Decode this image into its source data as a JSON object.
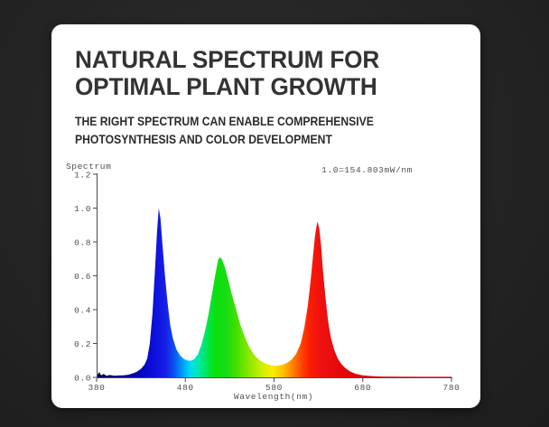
{
  "card": {
    "title_line1": "NATURAL SPECTRUM FOR",
    "title_line2": "OPTIMAL PLANT GROWTH",
    "subtitle_line1": "THE RIGHT SPECTRUM CAN ENABLE COMPREHENSIVE",
    "subtitle_line2": "PHOTOSYNTHESIS AND COLOR DEVELOPMENT"
  },
  "chart_data": {
    "type": "area",
    "title": "",
    "ylabel": "Spectrum",
    "xlabel": "Wavelength(nm)",
    "annotation": "1.0=154.803mW/nm",
    "x_range": [
      380,
      780
    ],
    "y_range": [
      0,
      1.2
    ],
    "grid": false,
    "x_ticks": [
      {
        "label": "380",
        "value": 380
      },
      {
        "label": "480",
        "value": 480
      },
      {
        "label": "580",
        "value": 580
      },
      {
        "label": "680",
        "value": 680
      },
      {
        "label": "780",
        "value": 780
      }
    ],
    "y_ticks": [
      {
        "label": "1.2",
        "value": 1.2
      },
      {
        "label": "1.0",
        "value": 1.0
      },
      {
        "label": "0.8",
        "value": 0.8
      },
      {
        "label": "0.6",
        "value": 0.6
      },
      {
        "label": "0.4",
        "value": 0.4
      },
      {
        "label": "0.2",
        "value": 0.2
      },
      {
        "label": "0.0",
        "value": 0.0
      }
    ],
    "peaks": [
      {
        "name": "blue",
        "wavelength_nm": 450,
        "relative_intensity": 1.0
      },
      {
        "name": "green",
        "wavelength_nm": 518,
        "relative_intensity": 0.71
      },
      {
        "name": "red",
        "wavelength_nm": 629,
        "relative_intensity": 0.92
      }
    ],
    "valleys": [
      {
        "wavelength_nm": 486,
        "relative_intensity": 0.1
      },
      {
        "wavelength_nm": 583,
        "relative_intensity": 0.07
      }
    ],
    "points": [
      [
        380,
        0.045
      ],
      [
        381,
        0.015
      ],
      [
        383,
        0.032
      ],
      [
        385,
        0.012
      ],
      [
        388,
        0.02
      ],
      [
        391,
        0.009
      ],
      [
        395,
        0.014
      ],
      [
        400,
        0.009
      ],
      [
        405,
        0.011
      ],
      [
        410,
        0.012
      ],
      [
        415,
        0.015
      ],
      [
        420,
        0.022
      ],
      [
        425,
        0.032
      ],
      [
        430,
        0.05
      ],
      [
        434,
        0.075
      ],
      [
        437,
        0.11
      ],
      [
        440,
        0.2
      ],
      [
        443,
        0.38
      ],
      [
        446,
        0.65
      ],
      [
        448,
        0.85
      ],
      [
        450,
        1.0
      ],
      [
        452,
        0.94
      ],
      [
        454,
        0.8
      ],
      [
        457,
        0.6
      ],
      [
        460,
        0.44
      ],
      [
        463,
        0.31
      ],
      [
        466,
        0.23
      ],
      [
        470,
        0.165
      ],
      [
        474,
        0.13
      ],
      [
        478,
        0.11
      ],
      [
        482,
        0.1
      ],
      [
        486,
        0.098
      ],
      [
        490,
        0.108
      ],
      [
        494,
        0.135
      ],
      [
        498,
        0.19
      ],
      [
        502,
        0.27
      ],
      [
        506,
        0.37
      ],
      [
        510,
        0.49
      ],
      [
        514,
        0.615
      ],
      [
        517,
        0.695
      ],
      [
        519,
        0.71
      ],
      [
        521,
        0.7
      ],
      [
        524,
        0.66
      ],
      [
        528,
        0.585
      ],
      [
        532,
        0.5
      ],
      [
        537,
        0.405
      ],
      [
        542,
        0.31
      ],
      [
        547,
        0.24
      ],
      [
        552,
        0.18
      ],
      [
        558,
        0.13
      ],
      [
        564,
        0.1
      ],
      [
        570,
        0.082
      ],
      [
        576,
        0.072
      ],
      [
        582,
        0.068
      ],
      [
        588,
        0.072
      ],
      [
        594,
        0.083
      ],
      [
        600,
        0.105
      ],
      [
        605,
        0.14
      ],
      [
        610,
        0.2
      ],
      [
        614,
        0.29
      ],
      [
        618,
        0.42
      ],
      [
        621,
        0.56
      ],
      [
        624,
        0.72
      ],
      [
        626,
        0.83
      ],
      [
        628,
        0.9
      ],
      [
        629,
        0.92
      ],
      [
        631,
        0.88
      ],
      [
        633,
        0.78
      ],
      [
        635,
        0.64
      ],
      [
        638,
        0.47
      ],
      [
        641,
        0.33
      ],
      [
        644,
        0.235
      ],
      [
        648,
        0.16
      ],
      [
        652,
        0.11
      ],
      [
        656,
        0.078
      ],
      [
        661,
        0.052
      ],
      [
        666,
        0.034
      ],
      [
        672,
        0.021
      ],
      [
        679,
        0.013
      ],
      [
        688,
        0.008
      ],
      [
        700,
        0.005
      ],
      [
        720,
        0.004
      ],
      [
        750,
        0.003
      ],
      [
        780,
        0.003
      ]
    ],
    "gradient": [
      {
        "nm": 380,
        "color": "#000050"
      },
      {
        "nm": 425,
        "color": "#0000b4"
      },
      {
        "nm": 445,
        "color": "#0d10dc"
      },
      {
        "nm": 458,
        "color": "#1620e6"
      },
      {
        "nm": 468,
        "color": "#0a55f0"
      },
      {
        "nm": 477,
        "color": "#00a0f8"
      },
      {
        "nm": 486,
        "color": "#00dcf0"
      },
      {
        "nm": 494,
        "color": "#00e8b4"
      },
      {
        "nm": 504,
        "color": "#00e658"
      },
      {
        "nm": 514,
        "color": "#0ce00c"
      },
      {
        "nm": 526,
        "color": "#16dc16"
      },
      {
        "nm": 538,
        "color": "#46e000"
      },
      {
        "nm": 552,
        "color": "#8ce800"
      },
      {
        "nm": 566,
        "color": "#ccf000"
      },
      {
        "nm": 578,
        "color": "#f8ee00"
      },
      {
        "nm": 590,
        "color": "#ffc000"
      },
      {
        "nm": 601,
        "color": "#ff8000"
      },
      {
        "nm": 611,
        "color": "#ff4600"
      },
      {
        "nm": 620,
        "color": "#fa1e00"
      },
      {
        "nm": 632,
        "color": "#ee1111"
      },
      {
        "nm": 660,
        "color": "#e20808"
      },
      {
        "nm": 780,
        "color": "#d40606"
      }
    ],
    "axis_color": "#4a4a4a"
  }
}
